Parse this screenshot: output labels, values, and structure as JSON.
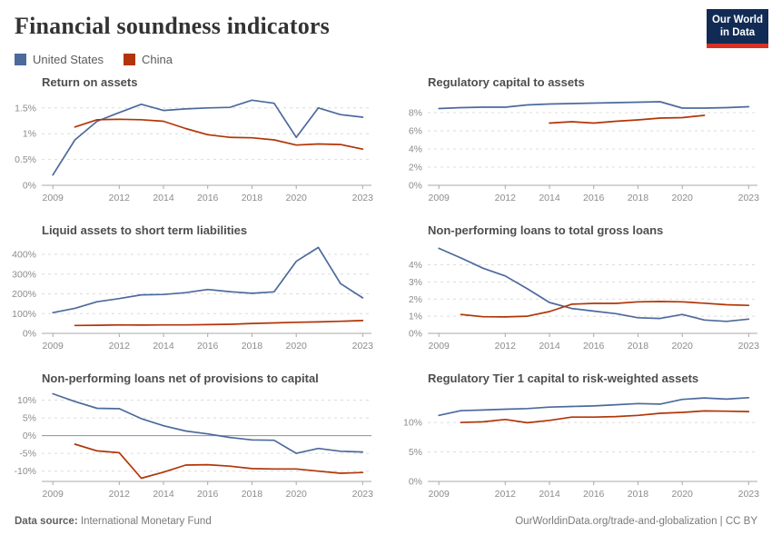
{
  "page": {
    "title": "Financial soundness indicators"
  },
  "logo": {
    "line1": "Our World",
    "line2": "in Data",
    "bg_color": "#122B54",
    "accent_color": "#D93025"
  },
  "legend": {
    "items": [
      {
        "label": "United States",
        "color": "#4C6A9C"
      },
      {
        "label": "China",
        "color": "#B13507"
      }
    ]
  },
  "footer": {
    "source_label": "Data source:",
    "source_value": "International Monetary Fund",
    "attribution": "OurWorldinData.org/trade-and-globalization | CC BY"
  },
  "chart_data": [
    {
      "type": "line",
      "title": "Return on assets",
      "xdomain": [
        2008.5,
        2023.4
      ],
      "xticks": [
        2009,
        2012,
        2014,
        2016,
        2018,
        2020,
        2023
      ],
      "ylim": [
        0,
        1.76
      ],
      "yticks": [
        0,
        0.5,
        1,
        1.5
      ],
      "ylabels": [
        "0%",
        "0.5%",
        "1%",
        "1.5%"
      ],
      "zero_solid": false,
      "series": [
        {
          "name": "United States",
          "color": "#4C6A9C",
          "points": [
            [
              2009,
              0.2
            ],
            [
              2010,
              0.88
            ],
            [
              2011,
              1.24
            ],
            [
              2012,
              1.41
            ],
            [
              2013,
              1.57
            ],
            [
              2014,
              1.45
            ],
            [
              2015,
              1.48
            ],
            [
              2016,
              1.5
            ],
            [
              2017,
              1.51
            ],
            [
              2018,
              1.65
            ],
            [
              2019,
              1.59
            ],
            [
              2020,
              0.93
            ],
            [
              2021,
              1.5
            ],
            [
              2022,
              1.37
            ],
            [
              2023,
              1.32
            ]
          ]
        },
        {
          "name": "China",
          "color": "#B13507",
          "points": [
            [
              2010,
              1.13
            ],
            [
              2011,
              1.27
            ],
            [
              2012,
              1.28
            ],
            [
              2013,
              1.27
            ],
            [
              2014,
              1.24
            ],
            [
              2015,
              1.1
            ],
            [
              2016,
              0.98
            ],
            [
              2017,
              0.93
            ],
            [
              2018,
              0.92
            ],
            [
              2019,
              0.88
            ],
            [
              2020,
              0.78
            ],
            [
              2021,
              0.8
            ],
            [
              2022,
              0.79
            ],
            [
              2023,
              0.7
            ]
          ]
        }
      ]
    },
    {
      "type": "line",
      "title": "Regulatory capital to assets",
      "xdomain": [
        2008.5,
        2023.4
      ],
      "xticks": [
        2009,
        2012,
        2014,
        2016,
        2018,
        2020,
        2023
      ],
      "ylim": [
        0,
        10
      ],
      "yticks": [
        0,
        2,
        4,
        6,
        8
      ],
      "ylabels": [
        "0%",
        "2%",
        "4%",
        "6%",
        "8%"
      ],
      "zero_solid": false,
      "series": [
        {
          "name": "United States",
          "color": "#4C6A9C",
          "points": [
            [
              2009,
              8.45
            ],
            [
              2010,
              8.55
            ],
            [
              2011,
              8.6
            ],
            [
              2012,
              8.6
            ],
            [
              2013,
              8.85
            ],
            [
              2014,
              8.95
            ],
            [
              2015,
              9.0
            ],
            [
              2016,
              9.05
            ],
            [
              2017,
              9.1
            ],
            [
              2018,
              9.15
            ],
            [
              2019,
              9.2
            ],
            [
              2020,
              8.5
            ],
            [
              2021,
              8.5
            ],
            [
              2022,
              8.55
            ],
            [
              2023,
              8.65
            ]
          ]
        },
        {
          "name": "China",
          "color": "#B13507",
          "points": [
            [
              2014,
              6.85
            ],
            [
              2015,
              7.0
            ],
            [
              2016,
              6.85
            ],
            [
              2017,
              7.05
            ],
            [
              2018,
              7.2
            ],
            [
              2019,
              7.4
            ],
            [
              2020,
              7.45
            ],
            [
              2021,
              7.7
            ]
          ]
        }
      ]
    },
    {
      "type": "line",
      "title": "Liquid assets to short term liabilities",
      "xdomain": [
        2008.5,
        2023.4
      ],
      "xticks": [
        2009,
        2012,
        2014,
        2016,
        2018,
        2020,
        2023
      ],
      "ylim": [
        0,
        460
      ],
      "yticks": [
        0,
        100,
        200,
        300,
        400
      ],
      "ylabels": [
        "0%",
        "100%",
        "200%",
        "300%",
        "400%"
      ],
      "zero_solid": false,
      "series": [
        {
          "name": "United States",
          "color": "#4C6A9C",
          "points": [
            [
              2009,
              105
            ],
            [
              2010,
              127
            ],
            [
              2011,
              160
            ],
            [
              2012,
              176
            ],
            [
              2013,
              195
            ],
            [
              2014,
              197
            ],
            [
              2015,
              206
            ],
            [
              2016,
              222
            ],
            [
              2017,
              211
            ],
            [
              2018,
              203
            ],
            [
              2019,
              210
            ],
            [
              2020,
              365
            ],
            [
              2021,
              435
            ],
            [
              2022,
              252
            ],
            [
              2023,
              180
            ]
          ]
        },
        {
          "name": "China",
          "color": "#B13507",
          "points": [
            [
              2010,
              40
            ],
            [
              2011,
              41
            ],
            [
              2012,
              43
            ],
            [
              2013,
              42
            ],
            [
              2014,
              43
            ],
            [
              2015,
              43
            ],
            [
              2016,
              44
            ],
            [
              2017,
              46
            ],
            [
              2018,
              50
            ],
            [
              2019,
              53
            ],
            [
              2020,
              56
            ],
            [
              2021,
              58
            ],
            [
              2022,
              61
            ],
            [
              2023,
              65
            ]
          ]
        }
      ]
    },
    {
      "type": "line",
      "title": "Non-performing loans to total gross loans",
      "xdomain": [
        2008.5,
        2023.4
      ],
      "xticks": [
        2009,
        2012,
        2014,
        2016,
        2018,
        2020,
        2023
      ],
      "ylim": [
        0,
        5.3
      ],
      "yticks": [
        0,
        1,
        2,
        3,
        4
      ],
      "ylabels": [
        "0%",
        "1%",
        "2%",
        "3%",
        "4%"
      ],
      "zero_solid": false,
      "series": [
        {
          "name": "United States",
          "color": "#4C6A9C",
          "points": [
            [
              2009,
              4.96
            ],
            [
              2010,
              4.4
            ],
            [
              2011,
              3.8
            ],
            [
              2012,
              3.35
            ],
            [
              2013,
              2.6
            ],
            [
              2014,
              1.8
            ],
            [
              2015,
              1.45
            ],
            [
              2016,
              1.3
            ],
            [
              2017,
              1.15
            ],
            [
              2018,
              0.91
            ],
            [
              2019,
              0.87
            ],
            [
              2020,
              1.1
            ],
            [
              2021,
              0.78
            ],
            [
              2022,
              0.7
            ],
            [
              2023,
              0.83
            ]
          ]
        },
        {
          "name": "China",
          "color": "#B13507",
          "points": [
            [
              2010,
              1.1
            ],
            [
              2011,
              0.97
            ],
            [
              2012,
              0.96
            ],
            [
              2013,
              1.0
            ],
            [
              2014,
              1.27
            ],
            [
              2015,
              1.7
            ],
            [
              2016,
              1.75
            ],
            [
              2017,
              1.75
            ],
            [
              2018,
              1.84
            ],
            [
              2019,
              1.86
            ],
            [
              2020,
              1.84
            ],
            [
              2021,
              1.76
            ],
            [
              2022,
              1.67
            ],
            [
              2023,
              1.63
            ]
          ]
        }
      ]
    },
    {
      "type": "line",
      "title": "Non-performing loans net of provisions to capital",
      "xdomain": [
        2008.5,
        2023.4
      ],
      "xticks": [
        2009,
        2012,
        2014,
        2016,
        2018,
        2020,
        2023
      ],
      "ylim": [
        -12.9,
        12.7
      ],
      "yticks": [
        -10,
        -5,
        0,
        5,
        10
      ],
      "ylabels": [
        "-10%",
        "-5%",
        "0%",
        "5%",
        "10%"
      ],
      "zero_solid": true,
      "series": [
        {
          "name": "United States",
          "color": "#4C6A9C",
          "points": [
            [
              2009,
              11.8
            ],
            [
              2010,
              9.6
            ],
            [
              2011,
              7.7
            ],
            [
              2012,
              7.6
            ],
            [
              2013,
              4.8
            ],
            [
              2014,
              2.8
            ],
            [
              2015,
              1.3
            ],
            [
              2016,
              0.5
            ],
            [
              2017,
              -0.5
            ],
            [
              2018,
              -1.2
            ],
            [
              2019,
              -1.3
            ],
            [
              2020,
              -5.0
            ],
            [
              2021,
              -3.6
            ],
            [
              2022,
              -4.4
            ],
            [
              2023,
              -4.6
            ]
          ]
        },
        {
          "name": "China",
          "color": "#B13507",
          "points": [
            [
              2010,
              -2.4
            ],
            [
              2011,
              -4.3
            ],
            [
              2012,
              -4.8
            ],
            [
              2013,
              -12.0
            ],
            [
              2014,
              -10.3
            ],
            [
              2015,
              -8.3
            ],
            [
              2016,
              -8.2
            ],
            [
              2017,
              -8.6
            ],
            [
              2018,
              -9.3
            ],
            [
              2019,
              -9.4
            ],
            [
              2020,
              -9.4
            ],
            [
              2021,
              -10.0
            ],
            [
              2022,
              -10.6
            ],
            [
              2023,
              -10.4
            ]
          ]
        }
      ]
    },
    {
      "type": "line",
      "title": "Regulatory Tier 1 capital to risk-weighted assets",
      "xdomain": [
        2008.5,
        2023.4
      ],
      "xticks": [
        2009,
        2012,
        2014,
        2016,
        2018,
        2020,
        2023
      ],
      "ylim": [
        0,
        15.4
      ],
      "yticks": [
        0,
        5,
        10
      ],
      "ylabels": [
        "0%",
        "5%",
        "10%"
      ],
      "zero_solid": false,
      "series": [
        {
          "name": "United States",
          "color": "#4C6A9C",
          "points": [
            [
              2009,
              11.2
            ],
            [
              2010,
              12.0
            ],
            [
              2011,
              12.1
            ],
            [
              2012,
              12.25
            ],
            [
              2013,
              12.35
            ],
            [
              2014,
              12.6
            ],
            [
              2015,
              12.7
            ],
            [
              2016,
              12.8
            ],
            [
              2017,
              13.0
            ],
            [
              2018,
              13.2
            ],
            [
              2019,
              13.1
            ],
            [
              2020,
              13.9
            ],
            [
              2021,
              14.15
            ],
            [
              2022,
              13.95
            ],
            [
              2023,
              14.2
            ]
          ]
        },
        {
          "name": "China",
          "color": "#B13507",
          "points": [
            [
              2010,
              10.0
            ],
            [
              2011,
              10.1
            ],
            [
              2012,
              10.5
            ],
            [
              2013,
              9.95
            ],
            [
              2014,
              10.35
            ],
            [
              2015,
              10.9
            ],
            [
              2016,
              10.9
            ],
            [
              2017,
              11.0
            ],
            [
              2018,
              11.2
            ],
            [
              2019,
              11.55
            ],
            [
              2020,
              11.7
            ],
            [
              2021,
              11.95
            ],
            [
              2022,
              11.9
            ],
            [
              2023,
              11.85
            ]
          ]
        }
      ]
    }
  ]
}
